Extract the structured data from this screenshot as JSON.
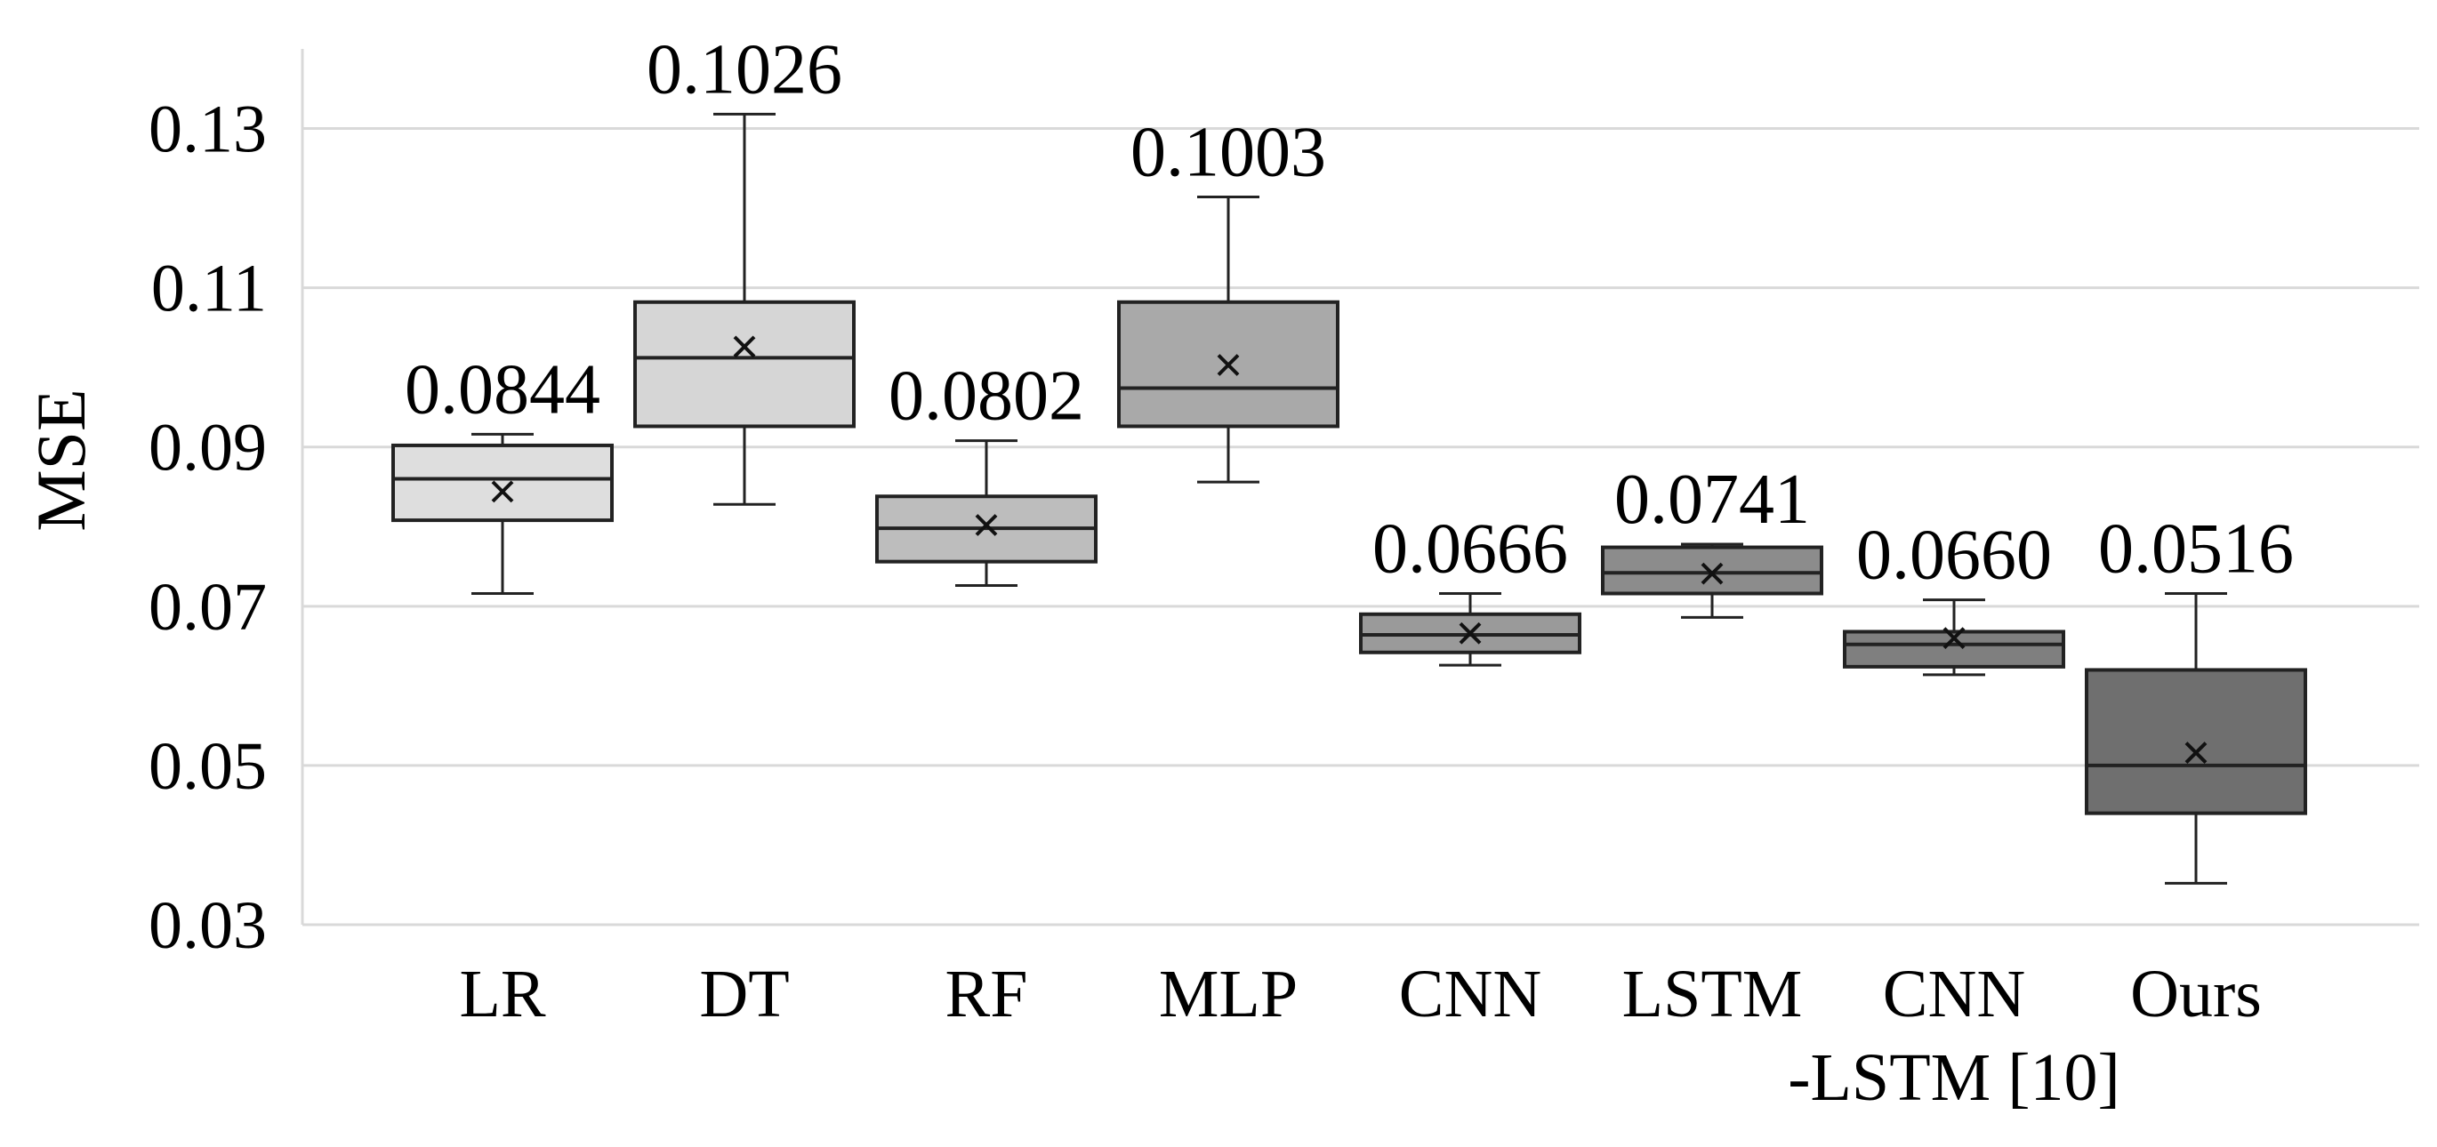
{
  "chart_data": {
    "type": "box",
    "xlabel": "",
    "ylabel": "MSE",
    "ylim": [
      0.03,
      0.14
    ],
    "yticks": [
      "0.03",
      "0.05",
      "0.07",
      "0.09",
      "0.11",
      "0.13"
    ],
    "grid": "horizontal",
    "categories": [
      {
        "label_lines": [
          "LR"
        ],
        "fill": "#dedede",
        "min": 0.0716,
        "q1": 0.0808,
        "median": 0.086,
        "q3": 0.0902,
        "max": 0.0916,
        "mean": 0.0844,
        "mean_label": "0.0844"
      },
      {
        "label_lines": [
          "DT"
        ],
        "fill": "#d6d6d6",
        "min": 0.0828,
        "q1": 0.0926,
        "median": 0.1012,
        "q3": 0.1082,
        "max": 0.1318,
        "mean": 0.1026,
        "mean_label": "0.1026"
      },
      {
        "label_lines": [
          "RF"
        ],
        "fill": "#bdbdbd",
        "min": 0.0726,
        "q1": 0.0756,
        "median": 0.0798,
        "q3": 0.0838,
        "max": 0.0908,
        "mean": 0.0802,
        "mean_label": "0.0802"
      },
      {
        "label_lines": [
          "MLP"
        ],
        "fill": "#a9a9a9",
        "min": 0.0856,
        "q1": 0.0926,
        "median": 0.0974,
        "q3": 0.1082,
        "max": 0.1214,
        "mean": 0.1003,
        "mean_label": "0.1003"
      },
      {
        "label_lines": [
          "CNN"
        ],
        "fill": "#9a9a9a",
        "min": 0.0626,
        "q1": 0.0642,
        "median": 0.0664,
        "q3": 0.069,
        "max": 0.0716,
        "mean": 0.0666,
        "mean_label": "0.0666"
      },
      {
        "label_lines": [
          "LSTM"
        ],
        "fill": "#8c8c8c",
        "min": 0.0686,
        "q1": 0.0716,
        "median": 0.0742,
        "q3": 0.0774,
        "max": 0.0778,
        "mean": 0.0741,
        "mean_label": "0.0741"
      },
      {
        "label_lines": [
          "CNN",
          "-LSTM [10]"
        ],
        "fill": "#7f7f7f",
        "min": 0.0614,
        "q1": 0.0624,
        "median": 0.0652,
        "q3": 0.0668,
        "max": 0.0708,
        "mean": 0.066,
        "mean_label": "0.0660"
      },
      {
        "label_lines": [
          "Ours"
        ],
        "fill": "#6f6f6f",
        "min": 0.0352,
        "q1": 0.044,
        "median": 0.05,
        "q3": 0.062,
        "max": 0.0716,
        "mean": 0.0516,
        "mean_label": "0.0516"
      }
    ]
  }
}
